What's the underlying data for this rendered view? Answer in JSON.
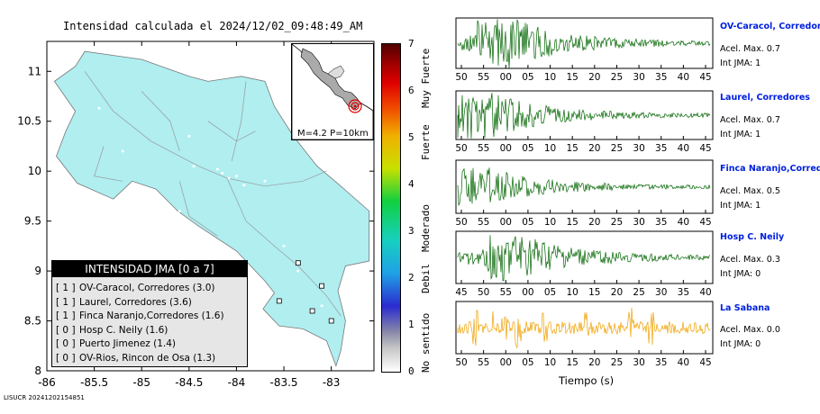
{
  "title": "Intensidad calculada el 2024/12/02_09:48:49_AM",
  "footer": "LISUCR 20241202154851",
  "map": {
    "lat_ticks": [
      "11",
      "10.5",
      "10",
      "9.5",
      "9",
      "8.5",
      "8"
    ],
    "lon_ticks": [
      "-86",
      "-85.5",
      "-85",
      "-84.5",
      "-84",
      "-83.5",
      "-83"
    ],
    "land_color": "#b0eef0",
    "epicenter": {
      "lon": -82.95,
      "lat": 8.6
    }
  },
  "inset": {
    "label": "M=4.2 P=10km"
  },
  "legend": {
    "header": "INTENSIDAD JMA [0 a 7]",
    "items": [
      {
        "level": "[ 1 ]",
        "text": "OV-Caracol, Corredores (3.0)"
      },
      {
        "level": "[ 1 ]",
        "text": "Laurel, Corredores (3.6)"
      },
      {
        "level": "[ 1 ]",
        "text": "Finca Naranjo,Corredores (1.6)"
      },
      {
        "level": "[ 0 ]",
        "text": "Hosp C. Neily (1.6)"
      },
      {
        "level": "[ 0 ]",
        "text": "Puerto Jimenez (1.4)"
      },
      {
        "level": "[ 0 ]",
        "text": "OV-Rios, Rincon de Osa (1.3)"
      }
    ]
  },
  "colorbar": {
    "ticks": [
      "7",
      "6",
      "5",
      "4",
      "3",
      "2",
      "1",
      "0"
    ],
    "labels": [
      "Muy Fuerte",
      "Fuerte",
      "Moderado",
      "Debil",
      "No sentido"
    ]
  },
  "stations": [
    {
      "name": "OV-Caracol, Corredores",
      "accel": "Acel. Max. 0.7",
      "int": "Int JMA: 1",
      "color": "#006400",
      "ticks": [
        "50",
        "55",
        "00",
        "05",
        "10",
        "15",
        "20",
        "25",
        "30",
        "35",
        "40",
        "45"
      ]
    },
    {
      "name": "Laurel, Corredores",
      "accel": "Acel. Max. 0.7",
      "int": "Int JMA: 1",
      "color": "#006400",
      "ticks": [
        "50",
        "55",
        "00",
        "05",
        "10",
        "15",
        "20",
        "25",
        "30",
        "35",
        "40",
        "45"
      ]
    },
    {
      "name": "Finca Naranjo,Corredores",
      "accel": "Acel. Max. 0.5",
      "int": "Int JMA: 1",
      "color": "#006400",
      "ticks": [
        "50",
        "55",
        "00",
        "05",
        "10",
        "15",
        "20",
        "25",
        "30",
        "35",
        "40",
        "45"
      ]
    },
    {
      "name": "Hosp C. Neily",
      "accel": "Acel. Max. 0.3",
      "int": "Int JMA: 0",
      "color": "#006400",
      "ticks": [
        "45",
        "50",
        "55",
        "00",
        "05",
        "10",
        "15",
        "20",
        "25",
        "30",
        "35",
        "40"
      ]
    },
    {
      "name": "La Sabana",
      "accel": "Acel. Max. 0.0",
      "int": "Int JMA: 0",
      "color": "#f0a000",
      "ticks": [
        "50",
        "55",
        "00",
        "05",
        "10",
        "15",
        "20",
        "25",
        "30",
        "35",
        "40",
        "45"
      ]
    }
  ],
  "xlabel": "Tiempo (s)"
}
